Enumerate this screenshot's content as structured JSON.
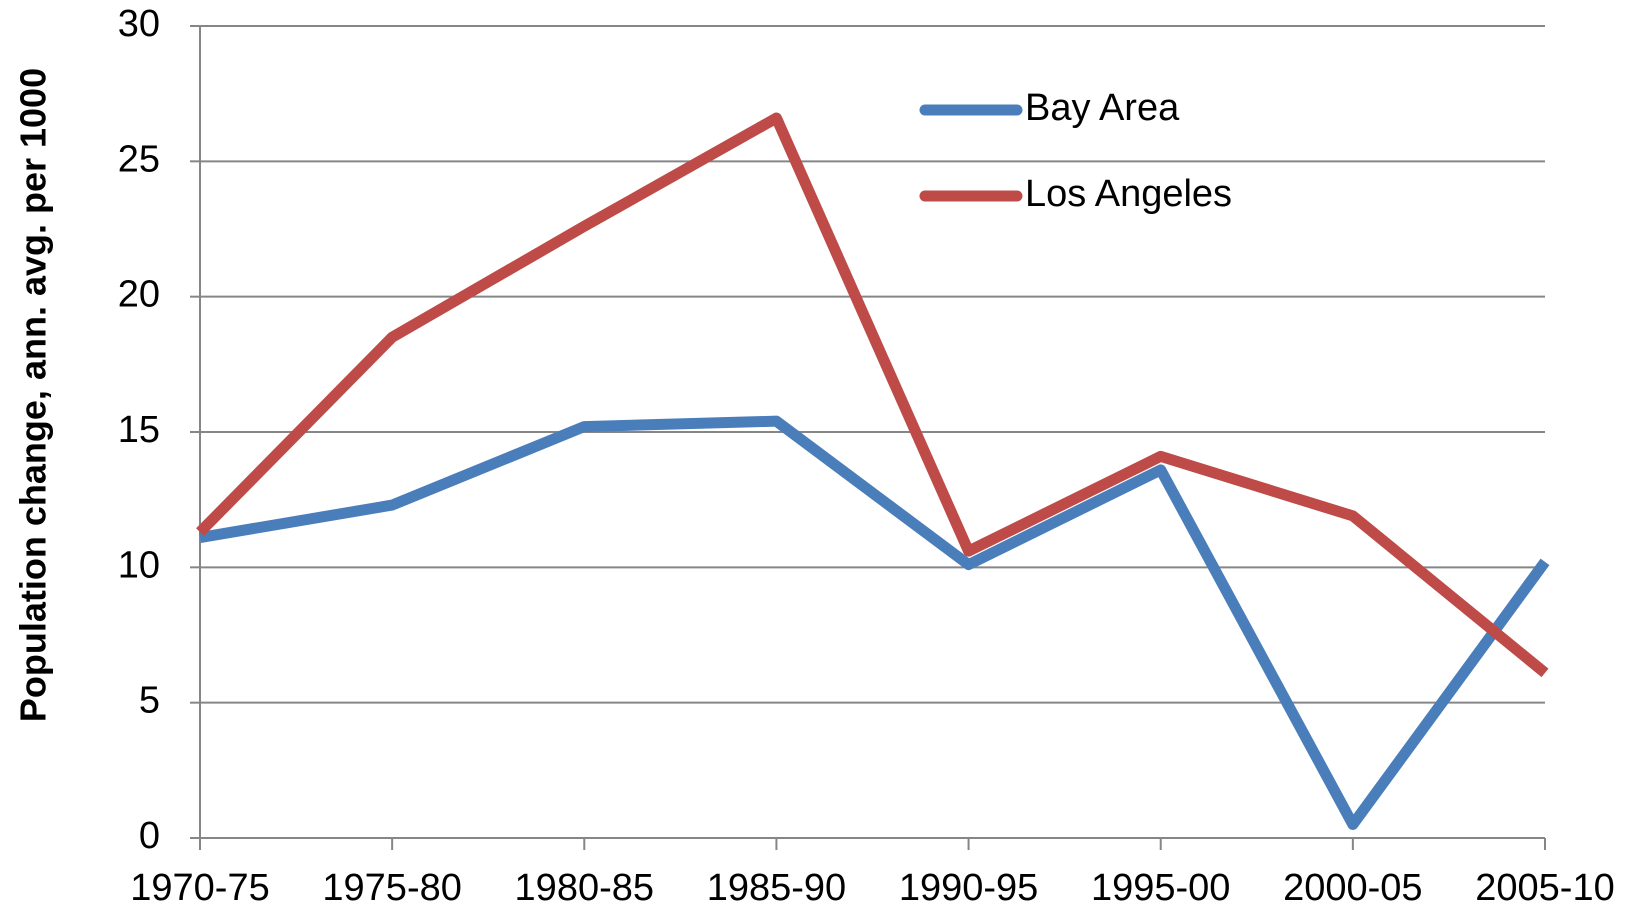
{
  "chart_data": {
    "type": "line",
    "y_label": "Population change, ann. avg. per 1000",
    "categories": [
      "1970-75",
      "1975-80",
      "1980-85",
      "1985-90",
      "1990-95",
      "1995-00",
      "2000-05",
      "2005-10"
    ],
    "series": [
      {
        "name": "Bay Area",
        "color": "#4a7ebb",
        "values": [
          11.1,
          12.3,
          15.2,
          15.4,
          10.1,
          13.6,
          0.5,
          10.2
        ]
      },
      {
        "name": "Los Angeles",
        "color": "#be4b48",
        "values": [
          11.3,
          18.5,
          22.6,
          26.6,
          10.6,
          14.1,
          11.9,
          6.1
        ]
      }
    ],
    "ylim": [
      0,
      30
    ],
    "yticks": [
      0,
      5,
      10,
      15,
      20,
      25,
      30
    ],
    "grid": true
  }
}
